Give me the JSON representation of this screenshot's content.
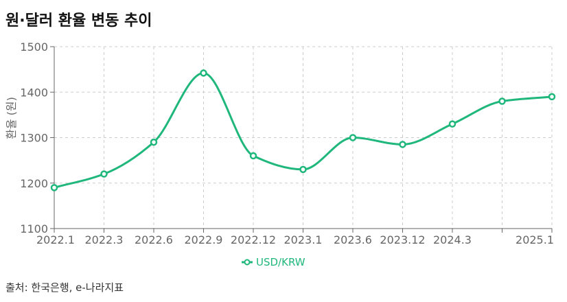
{
  "title": "원·달러 환율 변동 추이",
  "source": "출처: 한국은행, e-나라지표",
  "colors": {
    "series": "#1fb77c",
    "grid": "#cccccc",
    "axis": "#666666",
    "tick_text": "#666666"
  },
  "chart_data": {
    "type": "line",
    "title": "원·달러 환율 변동 추이",
    "ylabel": "환율 (원)",
    "xlabel": "",
    "ylim": [
      1100,
      1500
    ],
    "yticks": [
      1100,
      1200,
      1300,
      1400,
      1500
    ],
    "categories": [
      "2022.1",
      "2022.3",
      "2022.6",
      "2022.9",
      "2022.12",
      "2023.1",
      "2023.6",
      "2023.12",
      "2024.3",
      "",
      "2025.1"
    ],
    "series": [
      {
        "name": "USD/KRW",
        "values": [
          1190,
          1220,
          1290,
          1442,
          1260,
          1230,
          1300,
          1285,
          1330,
          1380,
          1390
        ]
      }
    ],
    "grid": true,
    "legend": "bottom",
    "smooth": true
  }
}
